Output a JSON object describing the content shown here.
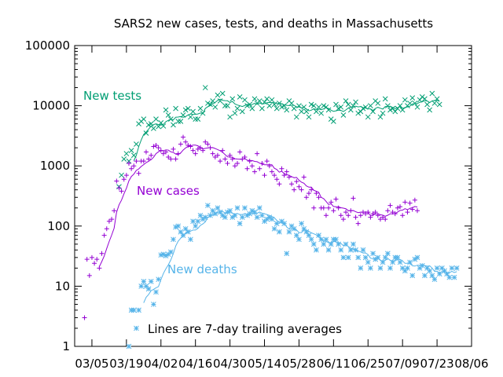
{
  "chart_data": {
    "type": "scatter",
    "title": "SARS2 new cases, tests, and deaths in Massachusetts",
    "annotation": "Lines are 7-day trailing averages",
    "y_scale": "log",
    "ylim": [
      1,
      100000
    ],
    "y_ticks": [
      "1",
      "10",
      "100",
      "1000",
      "10000",
      "100000"
    ],
    "x_ticks": [
      "03/05",
      "03/19",
      "04/02",
      "04/16",
      "04/30",
      "05/14",
      "05/28",
      "06/11",
      "06/25",
      "07/09",
      "07/23",
      "08/06"
    ],
    "xlim": [
      "2020-02-27",
      "2020-08-06"
    ],
    "grid": false,
    "series": [
      {
        "name": "New tests",
        "color": "#009e73",
        "marker": "x",
        "start_date": "2020-03-16",
        "points": [
          450,
          700,
          1300,
          1600,
          1200,
          1800,
          1500,
          2300,
          5000,
          5500,
          6000,
          3500,
          4800,
          5000,
          4200,
          6000,
          4500,
          5200,
          4600,
          8500,
          7000,
          6000,
          4800,
          9000,
          5500,
          5500,
          7000,
          8500,
          9000,
          6500,
          8000,
          6000,
          6000,
          9000,
          7500,
          20000,
          11000,
          10500,
          12000,
          9500,
          15000,
          12000,
          16000,
          10000,
          10000,
          6500,
          13000,
          7500,
          9000,
          14000,
          8000,
          12500,
          10000,
          10500,
          9000,
          13000,
          11000,
          12000,
          9000,
          11500,
          13000,
          10000,
          12500,
          10500,
          9000,
          11000,
          9500,
          10000,
          8500,
          12000,
          11000,
          9000,
          6500,
          10000,
          8000,
          9500,
          8000,
          6500,
          10500,
          10000,
          8000,
          9500,
          7500,
          10000,
          9500,
          8500,
          6000,
          5500,
          10500,
          9000,
          9500,
          7000,
          12000,
          10500,
          8500,
          10000,
          11500,
          7500,
          8000,
          9000,
          9500,
          6500,
          10000,
          8000,
          12000,
          11000,
          6500,
          7500,
          13000,
          10000,
          8500,
          9000,
          8000,
          9000,
          10000,
          8500,
          12500,
          10000,
          11000,
          13500,
          11000,
          9500,
          12500,
          14000,
          13000,
          10500,
          8500,
          16000,
          11000,
          13000,
          10500
        ]
      },
      {
        "name": "New cases",
        "color": "#9400d3",
        "marker": "+",
        "start_date": "2020-03-02",
        "points": [
          3,
          28,
          15,
          30,
          24,
          28,
          20,
          35,
          70,
          90,
          120,
          130,
          180,
          560,
          430,
          380,
          600,
          700,
          1100,
          900,
          1000,
          1200,
          750,
          1200,
          1200,
          1700,
          1300,
          1500,
          2100,
          2200,
          2000,
          1800,
          1600,
          1700,
          1400,
          1300,
          1900,
          1300,
          1600,
          2300,
          3000,
          2500,
          2200,
          2100,
          1800,
          1600,
          1900,
          2000,
          1800,
          2500,
          2300,
          2000,
          1600,
          1400,
          1500,
          1200,
          1800,
          1300,
          1100,
          1500,
          1300,
          1000,
          1100,
          1700,
          1300,
          1400,
          900,
          1200,
          1000,
          800,
          1600,
          900,
          1100,
          700,
          1200,
          1000,
          800,
          700,
          600,
          500,
          900,
          700,
          800,
          650,
          500,
          400,
          550,
          450,
          400,
          650,
          300,
          350,
          400,
          200,
          350,
          300,
          200,
          200,
          150,
          200,
          250,
          180,
          280,
          200,
          150,
          130,
          170,
          150,
          180,
          290,
          140,
          110,
          150,
          170,
          160,
          170,
          140,
          160,
          170,
          150,
          130,
          140,
          130,
          180,
          220,
          170,
          160,
          200,
          210,
          150,
          250,
          170,
          240,
          190,
          270,
          180
        ]
      },
      {
        "name": "New deaths",
        "color": "#56b4e9",
        "marker": "*",
        "start_date": "2020-03-20",
        "points": [
          1,
          4,
          4,
          2,
          4,
          10,
          12,
          10,
          9,
          12,
          5,
          8,
          13,
          33,
          34,
          32,
          34,
          37,
          60,
          96,
          100,
          80,
          70,
          90,
          80,
          60,
          120,
          100,
          120,
          150,
          130,
          140,
          220,
          150,
          180,
          160,
          200,
          170,
          150,
          140,
          170,
          180,
          140,
          150,
          200,
          110,
          140,
          200,
          150,
          160,
          180,
          170,
          140,
          200,
          150,
          120,
          130,
          140,
          130,
          90,
          110,
          80,
          120,
          110,
          35,
          80,
          100,
          90,
          70,
          60,
          110,
          90,
          80,
          70,
          60,
          50,
          40,
          70,
          60,
          50,
          60,
          40,
          50,
          60,
          60,
          50,
          40,
          30,
          50,
          30,
          40,
          50,
          40,
          30,
          20,
          40,
          30,
          25,
          20,
          35,
          28,
          30,
          20,
          25,
          30,
          35,
          20,
          25,
          30,
          30,
          25,
          20,
          18,
          20,
          25,
          15,
          28,
          30,
          20,
          22,
          15,
          20,
          18,
          15,
          13,
          20,
          16,
          20,
          18,
          16,
          14,
          20,
          14,
          20
        ]
      }
    ]
  }
}
